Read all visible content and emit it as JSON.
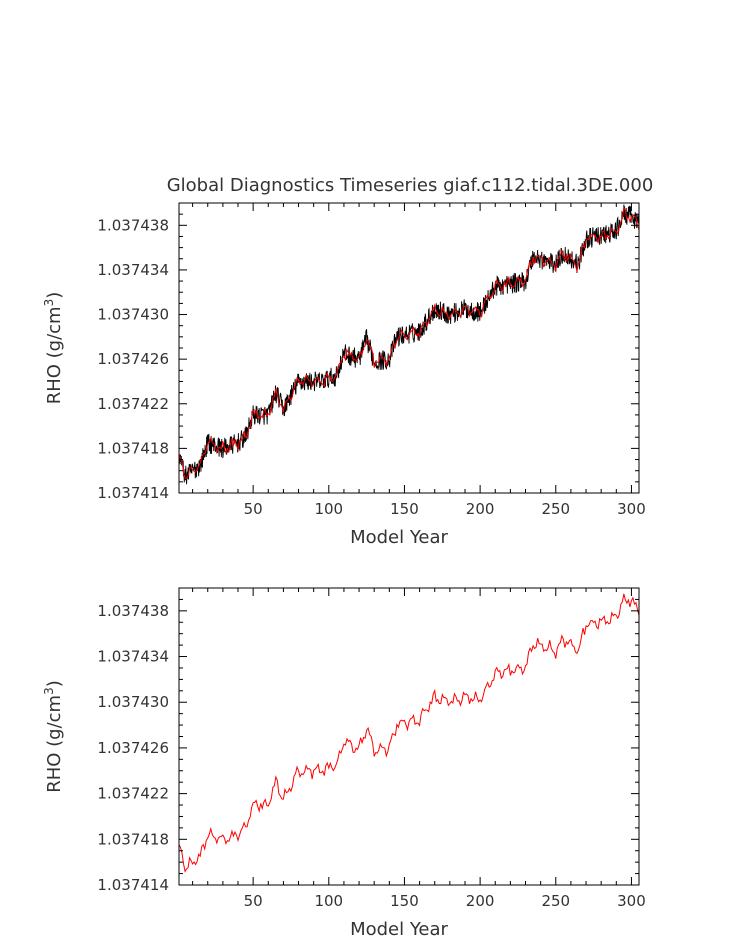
{
  "figure_title": "Global Diagnostics Timeseries giaf.c112.tidal.3DE.000",
  "colors": {
    "raw": "#000000",
    "smoothed": "#ff0000",
    "text": "#333333"
  },
  "chart_data": [
    {
      "type": "line",
      "title": "Global Diagnostics Timeseries giaf.c112.tidal.3DE.000",
      "xlabel": "Model Year",
      "ylabel": "RHO (g/cm",
      "ylabel_sup": "3",
      "ylabel_close": ")",
      "xlim": [
        1,
        305
      ],
      "ylim": [
        1.037414,
        1.03744
      ],
      "xticks": [
        50,
        100,
        150,
        200,
        250,
        300
      ],
      "yticks": [
        1.037414,
        1.037418,
        1.037422,
        1.037426,
        1.03743,
        1.037434,
        1.037438
      ],
      "ytick_labels": [
        "1.037414",
        "1.037418",
        "1.037422",
        "1.037426",
        "1.037430",
        "1.037434",
        "1.037438"
      ],
      "series_style": [
        "raw-black-noisy",
        "smoothed-red"
      ],
      "trend": {
        "x": [
          1,
          5,
          10,
          15,
          20,
          30,
          40,
          45,
          50,
          60,
          65,
          70,
          80,
          95,
          105,
          110,
          120,
          125,
          130,
          140,
          145,
          160,
          170,
          180,
          190,
          200,
          210,
          230,
          235,
          250,
          255,
          265,
          270,
          285,
          290,
          295,
          300,
          305
        ],
        "y": [
          1.0374175,
          1.0374155,
          1.037416,
          1.0374165,
          1.0374185,
          1.037418,
          1.0374185,
          1.037419,
          1.037421,
          1.037421,
          1.037423,
          1.0374215,
          1.037424,
          1.037424,
          1.0374245,
          1.0374265,
          1.037426,
          1.0374278,
          1.0374258,
          1.037426,
          1.037428,
          1.0374285,
          1.0374305,
          1.03743,
          1.0374305,
          1.0374302,
          1.0374325,
          1.037433,
          1.0374352,
          1.0374345,
          1.0374355,
          1.0374345,
          1.0374368,
          1.0374372,
          1.0374375,
          1.037439,
          1.0374388,
          1.037438
        ]
      }
    },
    {
      "type": "line",
      "title": "",
      "xlabel": "Model Year",
      "ylabel": "RHO (g/cm",
      "ylabel_sup": "3",
      "ylabel_close": ")",
      "xlim": [
        1,
        305
      ],
      "ylim": [
        1.037414,
        1.03744
      ],
      "xticks": [
        50,
        100,
        150,
        200,
        250,
        300
      ],
      "yticks": [
        1.037414,
        1.037418,
        1.037422,
        1.037426,
        1.03743,
        1.037434,
        1.037438
      ],
      "ytick_labels": [
        "1.037414",
        "1.037418",
        "1.037422",
        "1.037426",
        "1.037430",
        "1.037434",
        "1.037438"
      ],
      "series_style": [
        "smoothed-red"
      ],
      "trend": {
        "x": [
          1,
          5,
          10,
          15,
          20,
          30,
          40,
          45,
          50,
          60,
          65,
          70,
          80,
          95,
          105,
          110,
          120,
          125,
          130,
          140,
          145,
          160,
          170,
          180,
          190,
          200,
          210,
          230,
          235,
          250,
          255,
          265,
          270,
          285,
          290,
          295,
          300,
          305
        ],
        "y": [
          1.0374175,
          1.0374155,
          1.037416,
          1.0374165,
          1.0374185,
          1.037418,
          1.0374185,
          1.037419,
          1.037421,
          1.037421,
          1.037423,
          1.0374215,
          1.037424,
          1.037424,
          1.0374245,
          1.0374265,
          1.037426,
          1.0374278,
          1.0374258,
          1.037426,
          1.037428,
          1.0374285,
          1.0374305,
          1.03743,
          1.0374305,
          1.0374302,
          1.0374325,
          1.037433,
          1.0374352,
          1.0374345,
          1.0374355,
          1.0374345,
          1.0374368,
          1.0374372,
          1.0374375,
          1.037439,
          1.0374388,
          1.037438
        ]
      }
    }
  ]
}
